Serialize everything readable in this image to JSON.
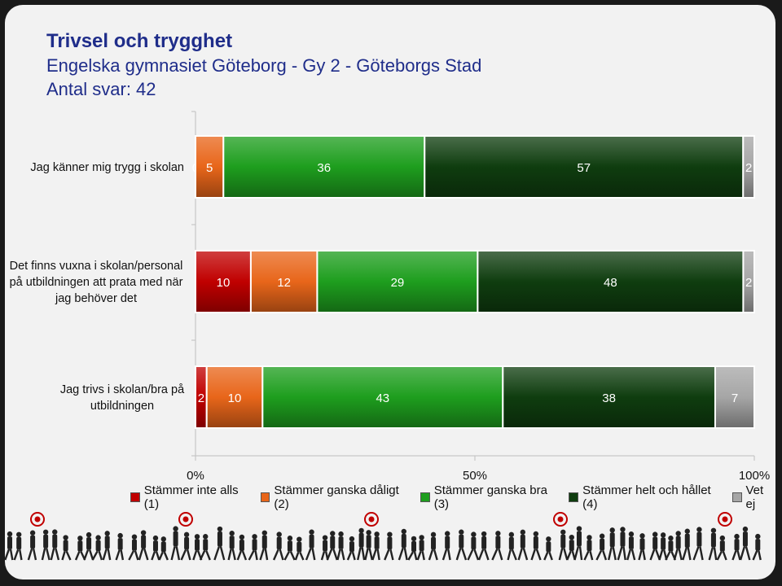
{
  "header": {
    "title": "Trivsel och trygghet",
    "subtitle": "Engelska gymnasiet Göteborg - Gy 2 - Göteborgs Stad",
    "count_line": "Antal svar: 42"
  },
  "chart_data": {
    "type": "bar",
    "orientation": "horizontal",
    "stacked": true,
    "percent_scale": true,
    "categories": [
      [
        "Jag känner mig trygg i skolan"
      ],
      [
        "Det finns vuxna i skolan/personal",
        "på utbildningen att prata med när",
        "jag behöver det"
      ],
      [
        "Jag trivs i skolan/bra på",
        "utbildningen"
      ]
    ],
    "series": [
      {
        "name": "Stämmer inte alls (1)",
        "color": "#c00000",
        "values": [
          0,
          10,
          2
        ]
      },
      {
        "name": "Stämmer ganska dåligt (2)",
        "color": "#e8661a",
        "values": [
          5,
          12,
          10
        ]
      },
      {
        "name": "Stämmer ganska bra (3)",
        "color": "#1e9e1e",
        "values": [
          36,
          29,
          43
        ]
      },
      {
        "name": "Stämmer helt och hållet (4)",
        "color": "#0f3d0f",
        "values": [
          57,
          48,
          38
        ]
      },
      {
        "name": "Vet ej",
        "color": "#a6a6a6",
        "values": [
          2,
          2,
          7
        ]
      }
    ],
    "xlim": [
      0,
      100
    ],
    "xticks": [
      "0%",
      "50%",
      "100%"
    ],
    "legend_position": "bottom"
  }
}
